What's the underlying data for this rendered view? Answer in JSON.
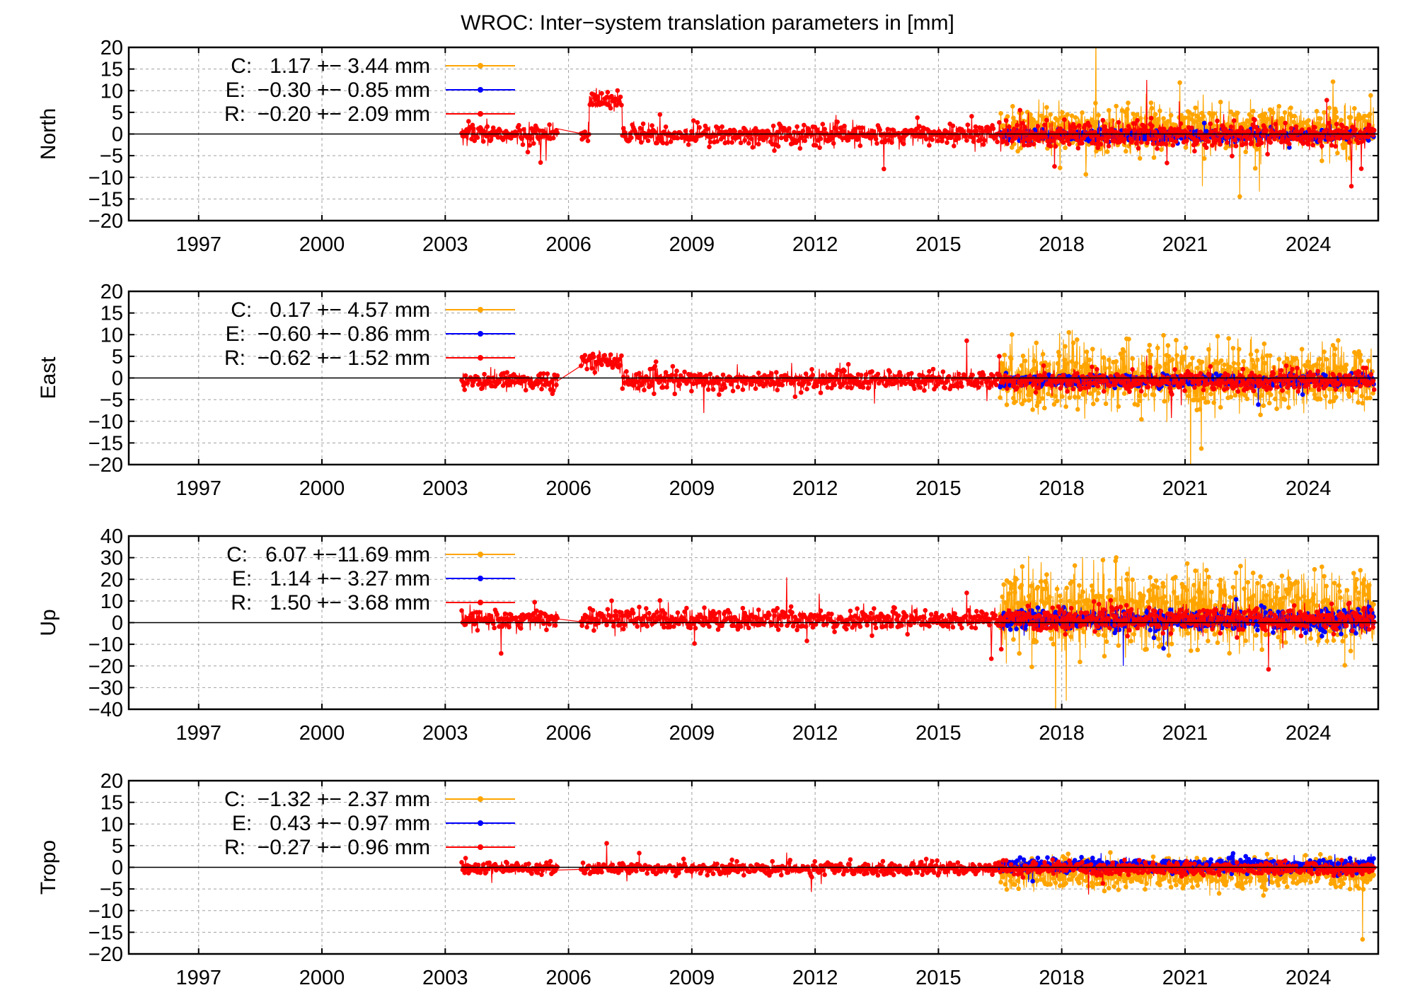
{
  "title": "WROC: Inter−system translation parameters in [mm]",
  "chart_data": [
    {
      "type": "scatter",
      "panel": "North",
      "ylabel": "North",
      "xlim": [
        1995.3,
        2025.7
      ],
      "ylim": [
        -20,
        20
      ],
      "x_ticks": [
        "1997",
        "2000",
        "2003",
        "2006",
        "2009",
        "2012",
        "2015",
        "2018",
        "2021",
        "2024"
      ],
      "y_ticks": [
        "20",
        "15",
        "10",
        "5",
        "0",
        "−5",
        "−10",
        "−15",
        "−20"
      ],
      "grid": true,
      "legend_placement": "top-left",
      "series": [
        {
          "name": "C",
          "color": "#ffa500",
          "legend": "C:   1.17 +− 3.44 mm",
          "x_range": [
            2016.5,
            2025.6
          ],
          "mean": 1.17,
          "sigma": 3.44
        },
        {
          "name": "E",
          "color": "#0000ff",
          "legend": "E:  −0.30 +− 0.85 mm",
          "x_range": [
            2016.5,
            2025.6
          ],
          "mean": -0.3,
          "sigma": 0.85
        },
        {
          "name": "R",
          "color": "#ff0000",
          "legend": "R:  −0.20 +− 2.09 mm",
          "x_range": [
            2003.4,
            2025.6
          ],
          "mean": -0.2,
          "sigma": 2.09
        }
      ]
    },
    {
      "type": "scatter",
      "panel": "East",
      "ylabel": "East",
      "xlim": [
        1995.3,
        2025.7
      ],
      "ylim": [
        -20,
        20
      ],
      "x_ticks": [
        "1997",
        "2000",
        "2003",
        "2006",
        "2009",
        "2012",
        "2015",
        "2018",
        "2021",
        "2024"
      ],
      "y_ticks": [
        "20",
        "15",
        "10",
        "5",
        "0",
        "−5",
        "−10",
        "−15",
        "−20"
      ],
      "grid": true,
      "legend_placement": "top-left",
      "series": [
        {
          "name": "C",
          "color": "#ffa500",
          "legend": "C:   0.17 +− 4.57 mm",
          "x_range": [
            2016.5,
            2025.6
          ],
          "mean": 0.17,
          "sigma": 4.57
        },
        {
          "name": "E",
          "color": "#0000ff",
          "legend": "E:  −0.60 +− 0.86 mm",
          "x_range": [
            2016.5,
            2025.6
          ],
          "mean": -0.6,
          "sigma": 0.86
        },
        {
          "name": "R",
          "color": "#ff0000",
          "legend": "R:  −0.62 +− 1.52 mm",
          "x_range": [
            2003.4,
            2025.6
          ],
          "mean": -0.62,
          "sigma": 1.52
        }
      ]
    },
    {
      "type": "scatter",
      "panel": "Up",
      "ylabel": "Up",
      "xlim": [
        1995.3,
        2025.7
      ],
      "ylim": [
        -40,
        40
      ],
      "x_ticks": [
        "1997",
        "2000",
        "2003",
        "2006",
        "2009",
        "2012",
        "2015",
        "2018",
        "2021",
        "2024"
      ],
      "y_ticks": [
        "40",
        "30",
        "20",
        "10",
        "0",
        "−10",
        "−20",
        "−30",
        "−40"
      ],
      "grid": true,
      "legend_placement": "top-left",
      "series": [
        {
          "name": "C",
          "color": "#ffa500",
          "legend": "C:   6.07 +−11.69 mm",
          "x_range": [
            2016.5,
            2025.6
          ],
          "mean": 6.07,
          "sigma": 11.69
        },
        {
          "name": "E",
          "color": "#0000ff",
          "legend": "E:   1.14 +− 3.27 mm",
          "x_range": [
            2016.5,
            2025.6
          ],
          "mean": 1.14,
          "sigma": 3.27
        },
        {
          "name": "R",
          "color": "#ff0000",
          "legend": "R:   1.50 +− 3.68 mm",
          "x_range": [
            2003.4,
            2025.6
          ],
          "mean": 1.5,
          "sigma": 3.68
        }
      ]
    },
    {
      "type": "scatter",
      "panel": "Tropo",
      "ylabel": "Tropo",
      "xlim": [
        1995.3,
        2025.7
      ],
      "ylim": [
        -20,
        20
      ],
      "x_ticks": [
        "1997",
        "2000",
        "2003",
        "2006",
        "2009",
        "2012",
        "2015",
        "2018",
        "2021",
        "2024"
      ],
      "y_ticks": [
        "20",
        "15",
        "10",
        "5",
        "0",
        "−5",
        "−10",
        "−15",
        "−20"
      ],
      "grid": true,
      "legend_placement": "top-left",
      "series": [
        {
          "name": "C",
          "color": "#ffa500",
          "legend": "C:  −1.32 +− 2.37 mm",
          "x_range": [
            2016.5,
            2025.6
          ],
          "mean": -1.32,
          "sigma": 2.37
        },
        {
          "name": "E",
          "color": "#0000ff",
          "legend": "E:   0.43 +− 0.97 mm",
          "x_range": [
            2016.5,
            2025.6
          ],
          "mean": 0.43,
          "sigma": 0.97
        },
        {
          "name": "R",
          "color": "#ff0000",
          "legend": "R:  −0.27 +− 0.96 mm",
          "x_range": [
            2003.4,
            2025.6
          ],
          "mean": -0.27,
          "sigma": 0.96
        }
      ]
    }
  ]
}
